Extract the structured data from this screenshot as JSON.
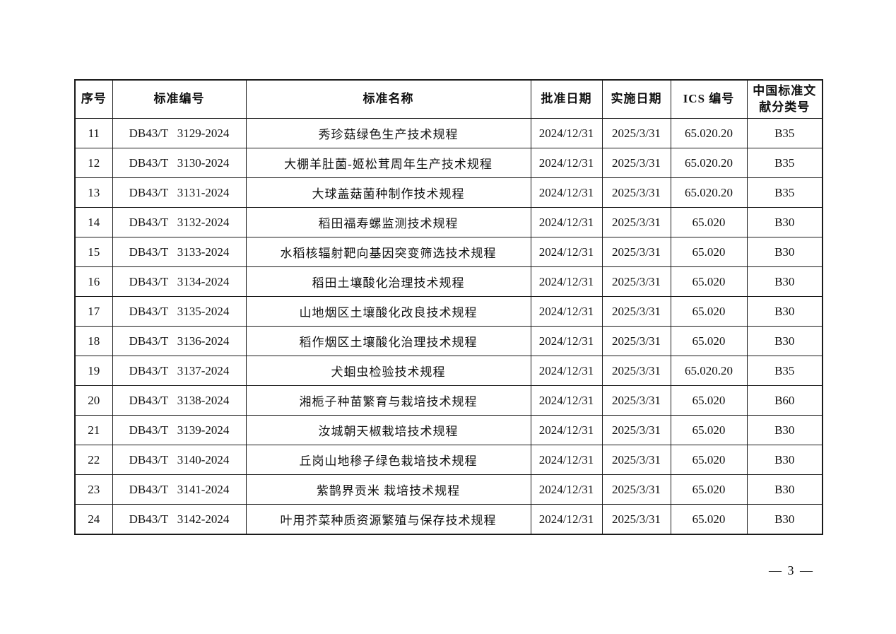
{
  "table": {
    "columns": [
      {
        "key": "seq",
        "label": "序号"
      },
      {
        "key": "code",
        "label": "标准编号"
      },
      {
        "key": "name",
        "label": "标准名称"
      },
      {
        "key": "approve",
        "label": "批准日期"
      },
      {
        "key": "implement",
        "label": "实施日期"
      },
      {
        "key": "ics",
        "label": "ICS 编号"
      },
      {
        "key": "class",
        "label": "中国标准文献分类号"
      }
    ],
    "rows": [
      [
        "11",
        "DB43/T   3129-2024",
        "秀珍菇绿色生产技术规程",
        "2024/12/31",
        "2025/3/31",
        "65.020.20",
        "B35"
      ],
      [
        "12",
        "DB43/T   3130-2024",
        "大棚羊肚菌-姬松茸周年生产技术规程",
        "2024/12/31",
        "2025/3/31",
        "65.020.20",
        "B35"
      ],
      [
        "13",
        "DB43/T   3131-2024",
        "大球盖菇菌种制作技术规程",
        "2024/12/31",
        "2025/3/31",
        "65.020.20",
        "B35"
      ],
      [
        "14",
        "DB43/T   3132-2024",
        "稻田福寿螺监测技术规程",
        "2024/12/31",
        "2025/3/31",
        "65.020",
        "B30"
      ],
      [
        "15",
        "DB43/T   3133-2024",
        "水稻核辐射靶向基因突变筛选技术规程",
        "2024/12/31",
        "2025/3/31",
        "65.020",
        "B30"
      ],
      [
        "16",
        "DB43/T   3134-2024",
        "稻田土壤酸化治理技术规程",
        "2024/12/31",
        "2025/3/31",
        "65.020",
        "B30"
      ],
      [
        "17",
        "DB43/T   3135-2024",
        "山地烟区土壤酸化改良技术规程",
        "2024/12/31",
        "2025/3/31",
        "65.020",
        "B30"
      ],
      [
        "18",
        "DB43/T   3136-2024",
        "稻作烟区土壤酸化治理技术规程",
        "2024/12/31",
        "2025/3/31",
        "65.020",
        "B30"
      ],
      [
        "19",
        "DB43/T   3137-2024",
        "犬蛔虫检验技术规程",
        "2024/12/31",
        "2025/3/31",
        "65.020.20",
        "B35"
      ],
      [
        "20",
        "DB43/T   3138-2024",
        "湘栀子种苗繁育与栽培技术规程",
        "2024/12/31",
        "2025/3/31",
        "65.020",
        "B60"
      ],
      [
        "21",
        "DB43/T   3139-2024",
        "汝城朝天椒栽培技术规程",
        "2024/12/31",
        "2025/3/31",
        "65.020",
        "B30"
      ],
      [
        "22",
        "DB43/T   3140-2024",
        "丘岗山地穇子绿色栽培技术规程",
        "2024/12/31",
        "2025/3/31",
        "65.020",
        "B30"
      ],
      [
        "23",
        "DB43/T   3141-2024",
        "紫鹊界贡米 栽培技术规程",
        "2024/12/31",
        "2025/3/31",
        "65.020",
        "B30"
      ],
      [
        "24",
        "DB43/T   3142-2024",
        "叶用芥菜种质资源繁殖与保存技术规程",
        "2024/12/31",
        "2025/3/31",
        "65.020",
        "B30"
      ]
    ]
  },
  "footer": {
    "page_number": "— 3 —"
  },
  "colors": {
    "text": "#111111",
    "border": "#1a1a1a",
    "background": "#ffffff"
  }
}
